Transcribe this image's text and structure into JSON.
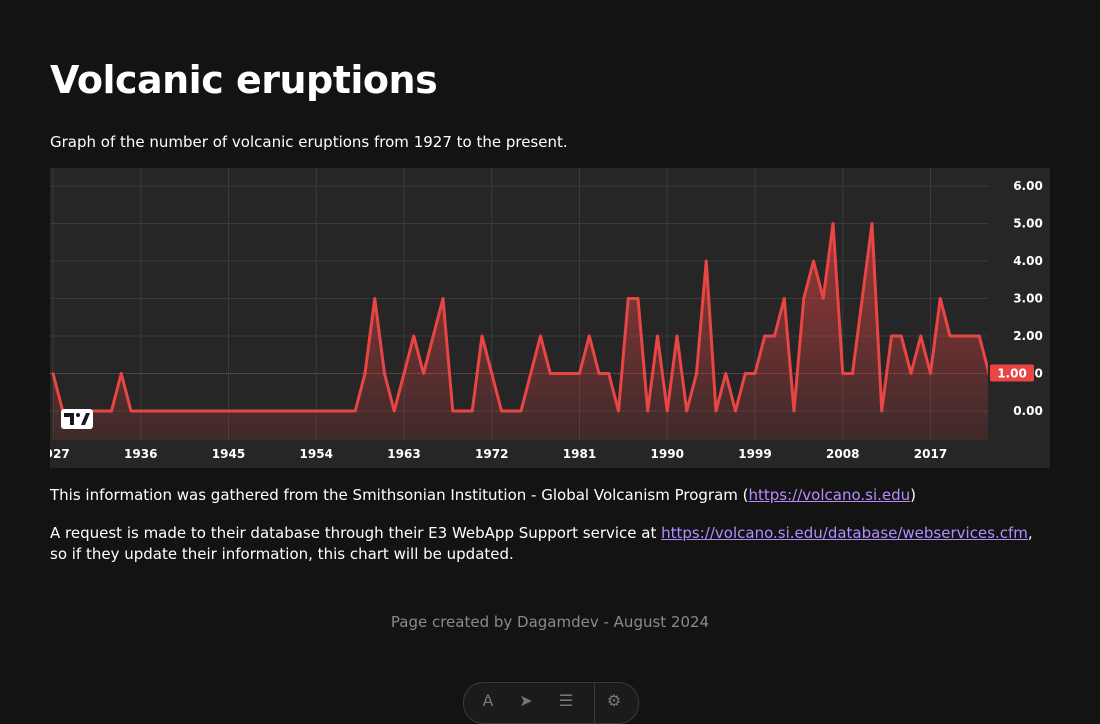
{
  "page": {
    "title": "Volcanic eruptions",
    "subtitle": "Graph of the number of volcanic eruptions from 1927 to the present.",
    "source_prefix": "This information was gathered from the Smithsonian Institution - Global Volcanism Program (",
    "source_link": "https://volcano.si.edu",
    "source_suffix": ")",
    "request_prefix": "A request is made to their database through their E3 WebApp Support service at ",
    "request_link": "https://volcano.si.edu/database/webservices.cfm",
    "request_suffix": ", so if they update their information, this chart will be updated.",
    "footer": "Page created by Dagamdev - August 2024"
  },
  "colors": {
    "background": "#131313",
    "chart_background": "#262626",
    "line": "#e84545",
    "price_label": "#e84545",
    "link": "#b48cff"
  },
  "chart_data": {
    "type": "area",
    "x": [
      1927,
      1928,
      1929,
      1930,
      1931,
      1932,
      1933,
      1934,
      1935,
      1936,
      1937,
      1938,
      1939,
      1940,
      1941,
      1942,
      1943,
      1944,
      1945,
      1946,
      1947,
      1948,
      1949,
      1950,
      1951,
      1952,
      1953,
      1954,
      1955,
      1956,
      1957,
      1958,
      1959,
      1960,
      1961,
      1962,
      1963,
      1964,
      1965,
      1966,
      1967,
      1968,
      1969,
      1970,
      1971,
      1972,
      1973,
      1974,
      1975,
      1976,
      1977,
      1978,
      1979,
      1980,
      1981,
      1982,
      1983,
      1984,
      1985,
      1986,
      1987,
      1988,
      1989,
      1990,
      1991,
      1992,
      1993,
      1994,
      1995,
      1996,
      1997,
      1998,
      1999,
      2000,
      2001,
      2002,
      2003,
      2004,
      2005,
      2006,
      2007,
      2008,
      2009,
      2010,
      2011,
      2012,
      2013,
      2014,
      2015,
      2016,
      2017,
      2018,
      2019,
      2020,
      2021,
      2022,
      2023
    ],
    "values": [
      1,
      0,
      0,
      0,
      0,
      0,
      0,
      1,
      0,
      0,
      0,
      0,
      0,
      0,
      0,
      0,
      0,
      0,
      0,
      0,
      0,
      0,
      0,
      0,
      0,
      0,
      0,
      0,
      0,
      0,
      0,
      0,
      1,
      3,
      1,
      0,
      1,
      2,
      1,
      2,
      3,
      0,
      0,
      0,
      2,
      1,
      0,
      0,
      0,
      1,
      2,
      1,
      1,
      1,
      1,
      2,
      1,
      1,
      0,
      3,
      3,
      0,
      2,
      0,
      2,
      0,
      1,
      4,
      0,
      1,
      0,
      1,
      1,
      2,
      2,
      3,
      0,
      3,
      4,
      3,
      5,
      1,
      1,
      3,
      5,
      0,
      2,
      2,
      1,
      2,
      1,
      3,
      2,
      2,
      2,
      2,
      1
    ],
    "x_ticks": [
      "1927",
      "1936",
      "1945",
      "1954",
      "1963",
      "1972",
      "1981",
      "1990",
      "1999",
      "2008",
      "2017"
    ],
    "y_ticks": [
      "0.00",
      "1.00",
      "2.00",
      "3.00",
      "4.00",
      "5.00",
      "6.00"
    ],
    "ylim": [
      -0.75,
      6.45
    ],
    "last_value_label": "1.00",
    "grid": true,
    "logo": "tradingview-logo"
  },
  "toolbar": {
    "icons": [
      "text-size-icon",
      "cursor-icon",
      "notifications-icon",
      "settings-icon"
    ]
  }
}
